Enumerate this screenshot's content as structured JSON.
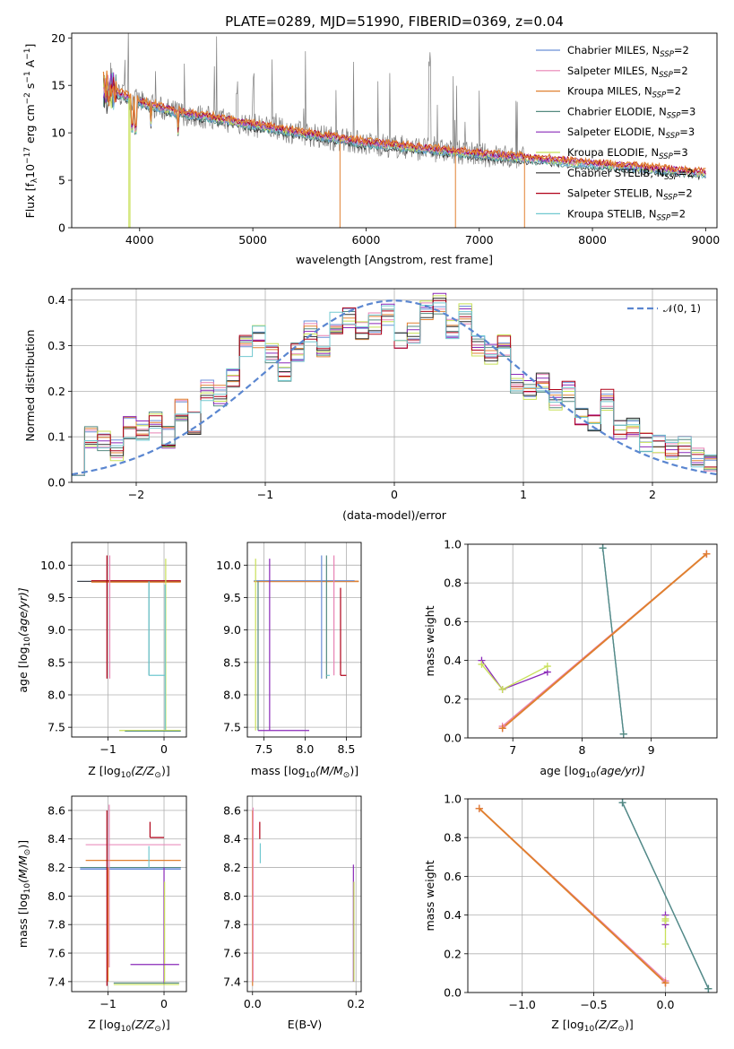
{
  "figure_title": "PLATE=0289, MJD=51990, FIBERID=0369, z=0.04",
  "colors": [
    "#6a8fd8",
    "#e882b4",
    "#e08030",
    "#558a80",
    "#8a28b8",
    "#c8e058",
    "#303030",
    "#b00018",
    "#70c8d0"
  ],
  "chart_data": [
    {
      "id": "spectrum",
      "type": "line",
      "xlabel": "wavelength [Angstrom, rest frame]",
      "ylabel_parts": [
        "Flux [f",
        "λ",
        "10",
        "−17",
        " erg cm",
        "−2",
        " s",
        "−1",
        " A",
        "−1",
        "]"
      ],
      "xlim": [
        3400,
        9100
      ],
      "ylim": [
        0,
        20.5
      ],
      "xticks": [
        4000,
        5000,
        6000,
        7000,
        8000,
        9000
      ],
      "yticks": [
        0,
        5,
        10,
        15,
        20
      ],
      "grid": false,
      "legend_location": "upper right",
      "series": [
        {
          "label": "Chabrier MILES, N",
          "sub": "SSP",
          "suffix": "=2"
        },
        {
          "label": "Salpeter MILES, N",
          "sub": "SSP",
          "suffix": "=2"
        },
        {
          "label": "Kroupa MILES, N",
          "sub": "SSP",
          "suffix": "=2"
        },
        {
          "label": "Chabrier ELODIE, N",
          "sub": "SSP",
          "suffix": "=3"
        },
        {
          "label": "Salpeter ELODIE, N",
          "sub": "SSP",
          "suffix": "=3"
        },
        {
          "label": "Kroupa ELODIE, N",
          "sub": "SSP",
          "suffix": "=3"
        },
        {
          "label": "Chabrier STELIB, N",
          "sub": "SSP",
          "suffix": "=2"
        },
        {
          "label": "Salpeter STELIB, N",
          "sub": "SSP",
          "suffix": "=2"
        },
        {
          "label": "Kroupa STELIB, N",
          "sub": "SSP",
          "suffix": "=2"
        }
      ],
      "continuum": {
        "x": [
          3680,
          3800,
          4000,
          4300,
          4600,
          5000,
          5500,
          6000,
          6500,
          7000,
          7400
        ],
        "y": [
          14.5,
          14.2,
          13.2,
          12.2,
          11.6,
          10.8,
          9.8,
          8.9,
          8.3,
          7.7,
          7.3
        ]
      },
      "observed_range": [
        3680,
        7400
      ],
      "model_range": [
        3680,
        9000
      ]
    },
    {
      "id": "residuals",
      "type": "step",
      "xlabel": "(data-model)/error",
      "ylabel": "Normed distribution",
      "xlim": [
        -2.5,
        2.5
      ],
      "ylim": [
        0,
        0.425
      ],
      "xticks": [
        -2,
        -1,
        0,
        1,
        2
      ],
      "yticks": [
        0.0,
        0.1,
        0.2,
        0.3,
        0.4
      ],
      "grid": true,
      "legend_location": "upper right",
      "normal_label": "𝒩(0, 1)",
      "bin_width": 0.1,
      "bin_start": -2.5,
      "histogram": [
        0.04,
        0.1,
        0.09,
        0.07,
        0.12,
        0.11,
        0.13,
        0.1,
        0.16,
        0.13,
        0.2,
        0.19,
        0.23,
        0.3,
        0.32,
        0.28,
        0.24,
        0.29,
        0.33,
        0.3,
        0.35,
        0.36,
        0.33,
        0.35,
        0.37,
        0.31,
        0.33,
        0.38,
        0.39,
        0.34,
        0.37,
        0.3,
        0.28,
        0.3,
        0.22,
        0.2,
        0.22,
        0.18,
        0.2,
        0.15,
        0.13,
        0.18,
        0.12,
        0.12,
        0.09,
        0.08,
        0.07,
        0.08,
        0.05,
        0.04
      ]
    },
    {
      "id": "age-vs-z",
      "type": "errorbar",
      "xlabel_parts": [
        "Z [log",
        "10",
        "(Z/Z",
        "⊙",
        ")]"
      ],
      "ylabel_parts": [
        "age  [log",
        "10",
        "(age/yr)]"
      ],
      "xlim": [
        -1.65,
        0.4
      ],
      "ylim": [
        7.35,
        10.35
      ],
      "xticks": [
        -1,
        0
      ],
      "yticks": [
        7.5,
        8.0,
        8.5,
        9.0,
        9.5,
        10.0
      ],
      "grid": true
    },
    {
      "id": "age-vs-mass",
      "type": "errorbar",
      "xlabel_parts": [
        "mass [log",
        "10",
        "(M/M",
        "⊙",
        ")]"
      ],
      "xlim": [
        7.3,
        8.68
      ],
      "ylim": [
        7.35,
        10.35
      ],
      "xticks": [
        7.5,
        8.0,
        8.5
      ],
      "yticks": [
        7.5,
        8.0,
        8.5,
        9.0,
        9.5,
        10.0
      ],
      "grid": true
    },
    {
      "id": "weight-vs-age",
      "type": "line",
      "xlabel_parts": [
        "age  [log",
        "10",
        "(age/yr)]"
      ],
      "ylabel": "mass weight",
      "xlim": [
        6.35,
        9.95
      ],
      "ylim": [
        0,
        1
      ],
      "xticks": [
        7,
        8,
        9
      ],
      "yticks": [
        0.0,
        0.2,
        0.4,
        0.6,
        0.8,
        1.0
      ],
      "grid": true,
      "series": [
        {
          "color_index": 8,
          "x": [
            8.3,
            8.6
          ],
          "y": [
            0.98,
            0.02
          ]
        },
        {
          "color_index": 0,
          "x": [
            8.3,
            8.6
          ],
          "y": [
            0.98,
            0.02
          ]
        },
        {
          "color_index": 3,
          "x": [
            8.3,
            8.6
          ],
          "y": [
            0.98,
            0.02
          ]
        },
        {
          "color_index": 4,
          "x": [
            6.55,
            6.85,
            7.5
          ],
          "y": [
            0.4,
            0.25,
            0.34
          ]
        },
        {
          "color_index": 5,
          "x": [
            6.55,
            6.85,
            7.5
          ],
          "y": [
            0.38,
            0.25,
            0.37
          ]
        },
        {
          "color_index": 7,
          "x": [
            6.85,
            9.8
          ],
          "y": [
            0.05,
            0.95
          ]
        },
        {
          "color_index": 1,
          "x": [
            6.85,
            9.8
          ],
          "y": [
            0.06,
            0.95
          ]
        },
        {
          "color_index": 2,
          "x": [
            6.85,
            9.8
          ],
          "y": [
            0.05,
            0.95
          ]
        }
      ]
    },
    {
      "id": "mass-vs-z",
      "type": "errorbar",
      "xlabel_parts": [
        "Z [log",
        "10",
        "(Z/Z",
        "⊙",
        ")]"
      ],
      "ylabel_parts": [
        "mass [log",
        "10",
        "(M/M",
        "⊙",
        ")]"
      ],
      "xlim": [
        -1.65,
        0.4
      ],
      "ylim": [
        7.33,
        8.7
      ],
      "xticks": [
        -1,
        0
      ],
      "yticks": [
        7.4,
        7.6,
        7.8,
        8.0,
        8.2,
        8.4,
        8.6
      ],
      "grid": true
    },
    {
      "id": "mass-vs-ebv",
      "type": "errorbar",
      "xlabel": "E(B-V)",
      "xlim": [
        -0.01,
        0.21
      ],
      "ylim": [
        7.33,
        8.7
      ],
      "xticks": [
        0.0,
        0.2
      ],
      "yticks": [
        7.4,
        7.6,
        7.8,
        8.0,
        8.2,
        8.4,
        8.6
      ],
      "grid": true
    },
    {
      "id": "weight-vs-z",
      "type": "line",
      "xlabel_parts": [
        "Z [log",
        "10",
        "(Z/Z",
        "⊙",
        ")]"
      ],
      "ylabel": "mass weight",
      "xlim": [
        -1.38,
        0.36
      ],
      "ylim": [
        0,
        1
      ],
      "xticks": [
        -1.0,
        -0.5,
        0.0
      ],
      "yticks": [
        0.0,
        0.2,
        0.4,
        0.6,
        0.8,
        1.0
      ],
      "grid": true,
      "series": [
        {
          "color_index": 8,
          "x": [
            -0.3,
            0.3
          ],
          "y": [
            0.98,
            0.02
          ]
        },
        {
          "color_index": 0,
          "x": [
            -0.3,
            0.3
          ],
          "y": [
            0.98,
            0.02
          ]
        },
        {
          "color_index": 3,
          "x": [
            -0.3,
            0.3
          ],
          "y": [
            0.98,
            0.02
          ]
        },
        {
          "color_index": 4,
          "x": [
            0.0,
            0.0
          ],
          "y": [
            0.4,
            0.35
          ]
        },
        {
          "color_index": 5,
          "x": [
            0.0,
            0.0,
            0.0
          ],
          "y": [
            0.38,
            0.25,
            0.37
          ]
        },
        {
          "color_index": 7,
          "x": [
            -1.3,
            0.0
          ],
          "y": [
            0.95,
            0.05
          ]
        },
        {
          "color_index": 1,
          "x": [
            -1.3,
            0.0
          ],
          "y": [
            0.95,
            0.06
          ]
        },
        {
          "color_index": 2,
          "x": [
            -1.3,
            0.0
          ],
          "y": [
            0.95,
            0.05
          ]
        }
      ]
    }
  ]
}
